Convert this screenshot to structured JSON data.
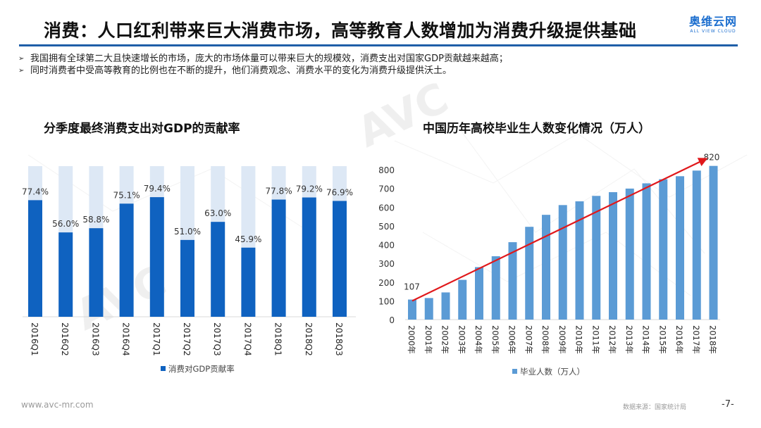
{
  "header": {
    "title": "消费：人口红利带来巨大消费市场，高等教育人数增加为消费升级提供基础",
    "logo_cn": "奥维云网",
    "logo_en": "ALL VIEW CLOUD",
    "accent_color": "#1f5fa8"
  },
  "bullets": [
    {
      "icon": "arrow-bullet-icon",
      "text": "我国拥有全球第二大且快速增长的市场，庞大的市场体量可以带来巨大的规模效，消费支出对国家GDP贡献越来越高；"
    },
    {
      "icon": "arrow-bullet-icon",
      "text": "同时消费者中受高等教育的比例也在不断的提升，他们消费观念、消费水平的变化为消费升级提供沃土。"
    }
  ],
  "chart_data": [
    {
      "type": "bar",
      "title": "分季度最终消费支出对GDP的贡献率",
      "categories": [
        "2016Q1",
        "2016Q2",
        "2016Q3",
        "2016Q4",
        "2017Q1",
        "2017Q2",
        "2017Q3",
        "2017Q4",
        "2018Q1",
        "2018Q2",
        "2018Q3"
      ],
      "series": [
        {
          "name": "消费对GDP贡献率",
          "values": [
            77.4,
            56.0,
            58.8,
            75.1,
            79.4,
            51.0,
            63.0,
            45.9,
            77.8,
            79.2,
            76.9
          ],
          "color": "#0f62c0"
        }
      ],
      "data_labels": [
        "77.4%",
        "56.0%",
        "58.8%",
        "75.1%",
        "79.4%",
        "51.0%",
        "63.0%",
        "45.9%",
        "77.8%",
        "79.2%",
        "76.9%"
      ],
      "background_bar_value": 100,
      "background_color": "#dde8f5",
      "ylim": [
        0,
        100
      ],
      "xlabel": "",
      "ylabel": "",
      "legend": "bottom",
      "grid": false
    },
    {
      "type": "bar",
      "title": "中国历年高校毕业生人数变化情况（万人）",
      "categories": [
        "2000年",
        "2001年",
        "2002年",
        "2003年",
        "2004年",
        "2005年",
        "2006年",
        "2007年",
        "2008年",
        "2009年",
        "2010年",
        "2011年",
        "2012年",
        "2013年",
        "2014年",
        "2015年",
        "2016年",
        "2017年",
        "2018年"
      ],
      "series": [
        {
          "name": "毕业人数（万人）",
          "values": [
            107,
            115,
            145,
            212,
            280,
            338,
            413,
            495,
            559,
            611,
            631,
            660,
            680,
            699,
            727,
            749,
            765,
            795,
            820
          ],
          "color": "#5b9bd5"
        }
      ],
      "annotations": [
        {
          "label": "107",
          "category": "2000年"
        },
        {
          "label": "820",
          "category": "2018年"
        }
      ],
      "trend_arrow": {
        "from": [
          "2000年",
          100
        ],
        "to": [
          "2018年",
          855
        ],
        "color": "#e0181b"
      },
      "yticks": [
        0,
        100,
        200,
        300,
        400,
        500,
        600,
        700,
        800
      ],
      "ylim": [
        0,
        800
      ],
      "xlabel": "",
      "ylabel": "",
      "legend": "bottom",
      "grid": false
    }
  ],
  "footer": {
    "url": "www.avc-mr.com",
    "source": "数据来源：国家统计局",
    "page": "-7-"
  }
}
